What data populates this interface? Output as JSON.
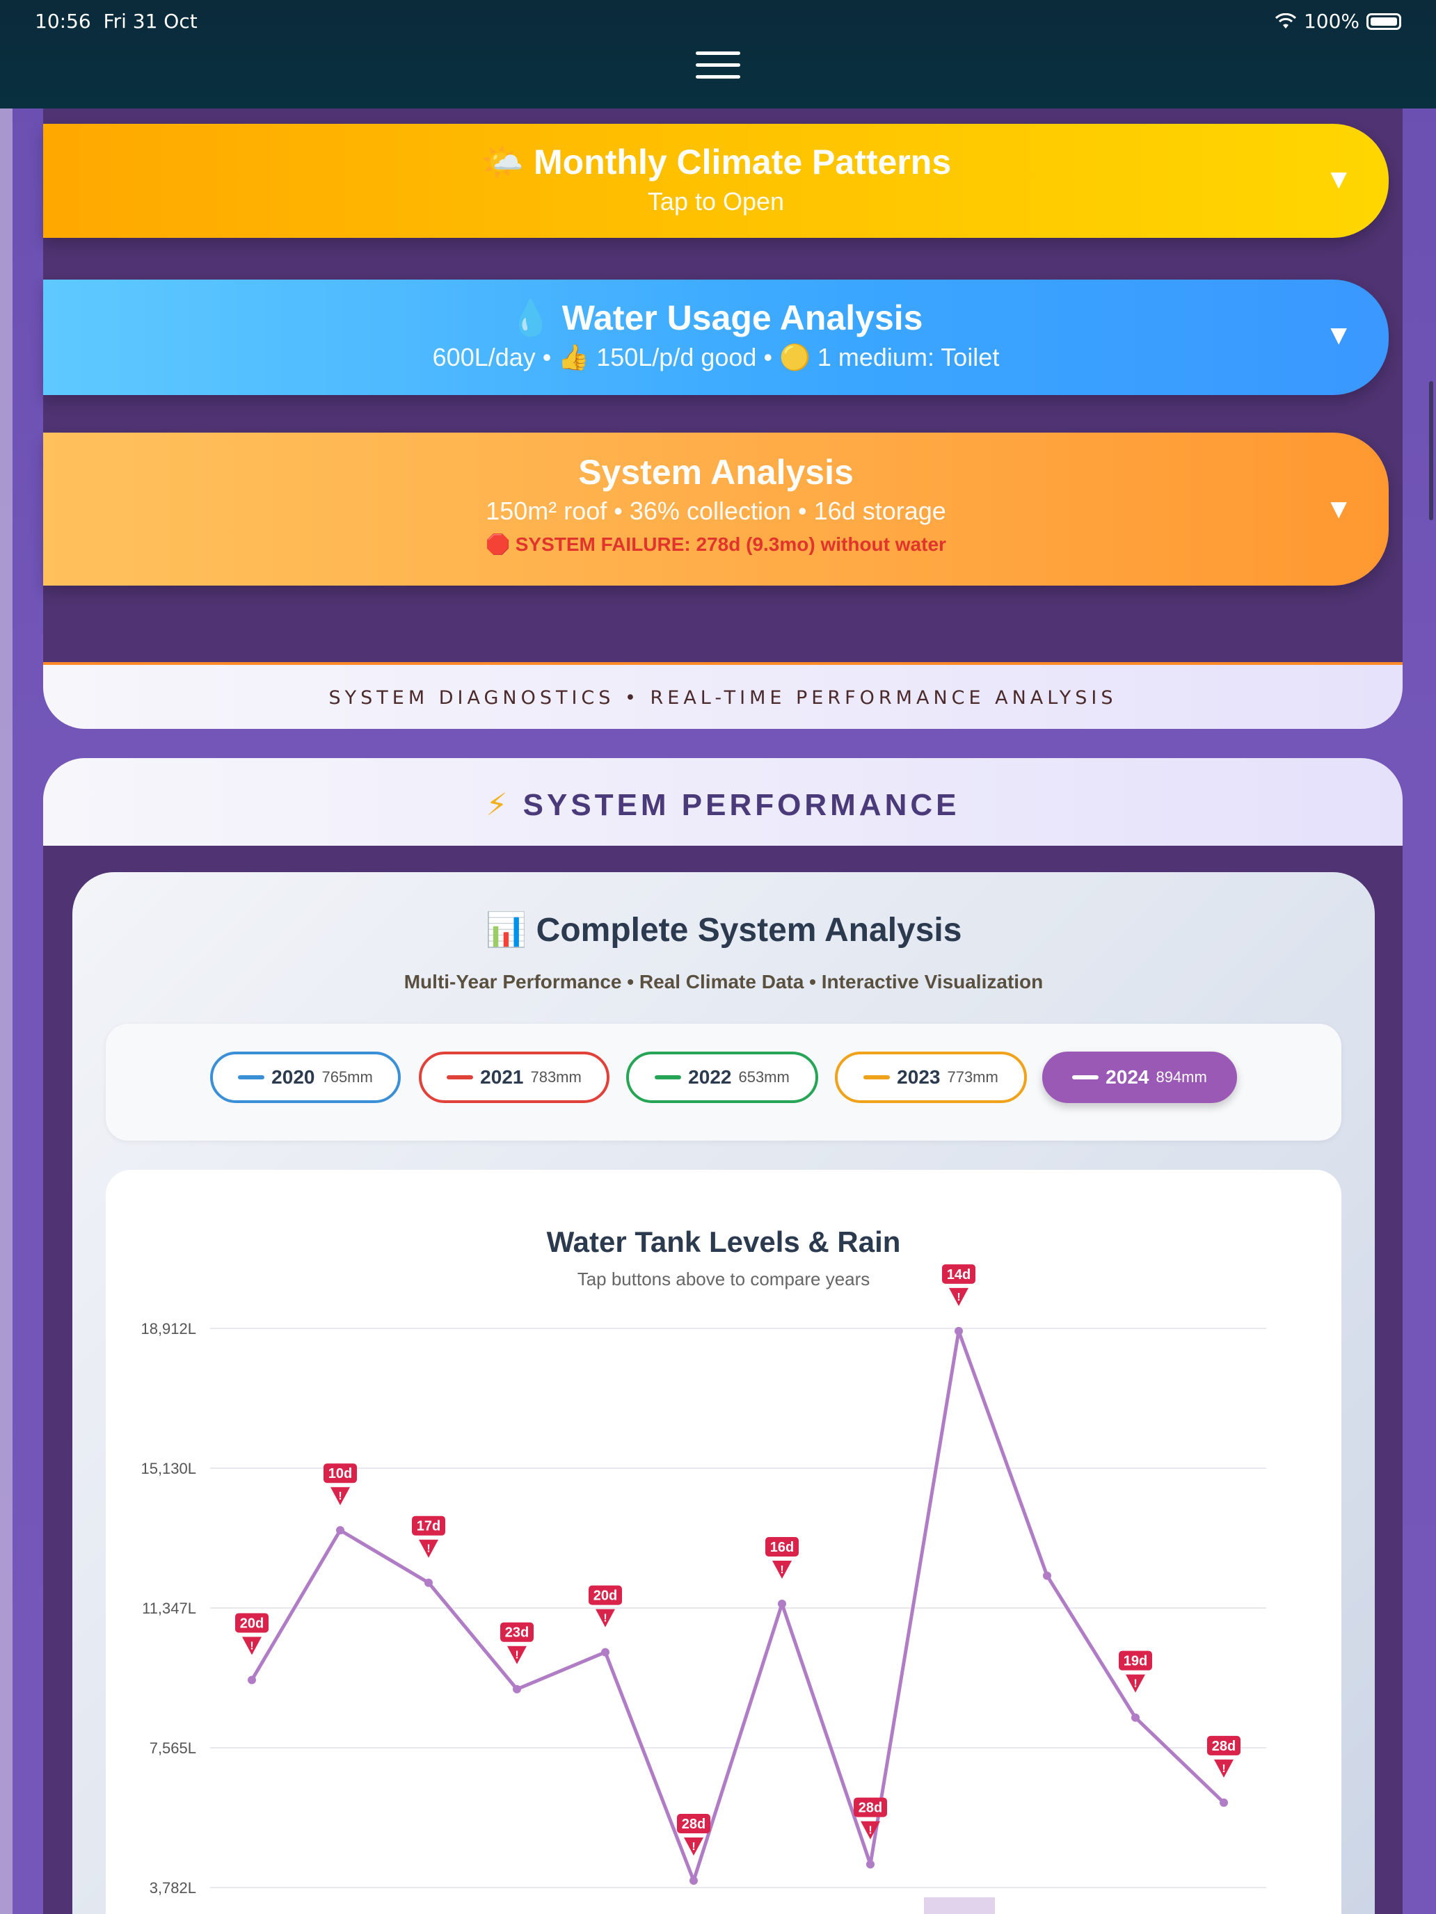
{
  "status": {
    "time": "10:56",
    "date": "Fri 31 Oct",
    "battery": "100%"
  },
  "cards": {
    "climate": {
      "icon": "🌤️",
      "title": "Monthly Climate Patterns",
      "sub": "Tap to Open",
      "arrow": "▼"
    },
    "water": {
      "icon": "💧",
      "title": "Water Usage Analysis",
      "sub": "600L/day • 👍 150L/p/d good • 🟡 1 medium: Toilet",
      "arrow": "▼"
    },
    "system": {
      "title": "System Analysis",
      "sub": "150m² roof • 36% collection • 16d storage",
      "failure": "🛑 SYSTEM FAILURE: 278d (9.3mo) without water",
      "arrow": "▼"
    }
  },
  "diagnostics": "SYSTEM DIAGNOSTICS • REAL-TIME PERFORMANCE ANALYSIS",
  "performance": {
    "icon": "⚡",
    "title": "SYSTEM PERFORMANCE"
  },
  "analysis": {
    "icon": "📊",
    "title": "Complete System Analysis",
    "sub": "Multi-Year Performance • Real Climate Data • Interactive Visualization",
    "years": [
      {
        "year": "2020",
        "mm": "765mm",
        "color": "#3b8fd6",
        "active": false
      },
      {
        "year": "2021",
        "mm": "783mm",
        "color": "#e0423a",
        "active": false
      },
      {
        "year": "2022",
        "mm": "653mm",
        "color": "#27a556",
        "active": false
      },
      {
        "year": "2023",
        "mm": "773mm",
        "color": "#f0a21a",
        "active": false
      },
      {
        "year": "2024",
        "mm": "894mm",
        "color": "#9b59b6",
        "active": true
      }
    ]
  },
  "chart_data": {
    "type": "line",
    "title": "Water Tank Levels & Rain",
    "subtitle": "Tap buttons above to compare years",
    "y_ticks": [
      "18,912L",
      "15,130L",
      "11,347L",
      "7,565L",
      "3,782L"
    ],
    "y_tick_values": [
      18912,
      15130,
      11347,
      7565,
      3782
    ],
    "series": [
      {
        "color": "#b07cc6",
        "values": [
          9400,
          13450,
          12030,
          9150,
          10150,
          3970,
          11460,
          4410,
          18840,
          12220,
          8380,
          6080
        ],
        "flags": [
          "20d",
          "10d",
          "17d",
          "23d",
          "20d",
          "28d",
          "16d",
          "28d",
          "14d",
          "",
          "19d",
          "28d"
        ]
      }
    ],
    "grid": true
  }
}
